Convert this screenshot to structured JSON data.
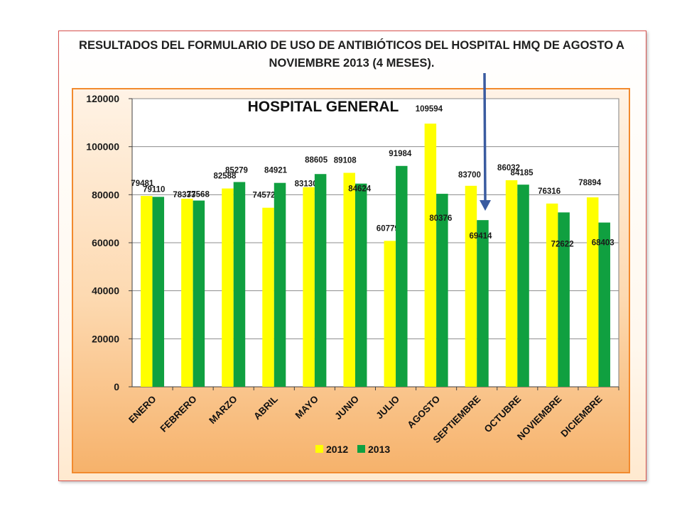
{
  "title_line1": "RESULTADOS DEL FORMULARIO DE USO DE ANTIBIÓTICOS DEL HOSPITAL HMQ DE AGOSTO A",
  "title_line2": "NOVIEMBRE 2013 (4 MESES).",
  "colors": {
    "series_2012": "#ffff00",
    "series_2013": "#10a040",
    "frame_border": "#f28a2e",
    "arrow": "#3a5ba0"
  },
  "chart_data": {
    "type": "bar",
    "title": "HOSPITAL  GENERAL",
    "categories": [
      "ENERO",
      "FEBRERO",
      "MARZO",
      "ABRIL",
      "MAYO",
      "JUNIO",
      "JULIO",
      "AGOSTO",
      "SEPTIEMBRE",
      "OCTUBRE",
      "NOVIEMBRE",
      "DICIEMBRE"
    ],
    "series": [
      {
        "name": "2012",
        "values": [
          79481,
          78333,
          82588,
          74572,
          83130,
          89108,
          60779,
          109594,
          83700,
          86032,
          76316,
          78894
        ]
      },
      {
        "name": "2013",
        "values": [
          79110,
          77568,
          85279,
          84921,
          88605,
          84624,
          91984,
          80376,
          69414,
          84185,
          72622,
          68403
        ]
      }
    ],
    "ylim": [
      0,
      120000
    ],
    "yticks": [
      0,
      20000,
      40000,
      60000,
      80000,
      100000,
      120000
    ],
    "grid": true,
    "legend_position": "bottom"
  }
}
